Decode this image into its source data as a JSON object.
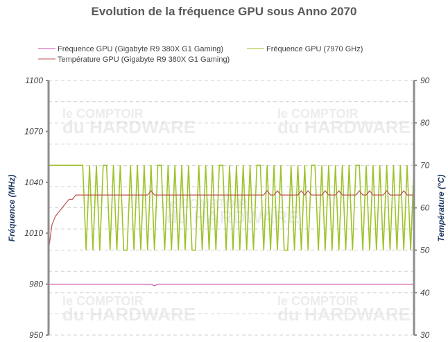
{
  "watermark": {
    "line1": "le COMPTOIR",
    "line2": "du HARDWARE"
  },
  "chart_data": {
    "type": "line",
    "title": "Evolution de la fréquence GPU sous Anno 2070",
    "ylabel": "Fréquence (MHz)",
    "y2label": "Température (°C)",
    "ylim": [
      950,
      1100
    ],
    "yticks": [
      950,
      980,
      1010,
      1040,
      1070,
      1100
    ],
    "y2lim": [
      30,
      90
    ],
    "y2ticks": [
      30,
      40,
      50,
      60,
      70,
      80,
      90
    ],
    "grid": true,
    "legend": "top",
    "series": [
      {
        "name": "Fréquence GPU (Gigabyte R9 380X G1 Gaming)",
        "axis": "left",
        "color": "#cc4fa6",
        "values": [
          980,
          980,
          980,
          980,
          980,
          980,
          980,
          980,
          980,
          980,
          980,
          980,
          980,
          980,
          980,
          980,
          980,
          980,
          980,
          980,
          980,
          980,
          980,
          980,
          980,
          980,
          980,
          980,
          980,
          980,
          980,
          979,
          980,
          980,
          980,
          980,
          980,
          980,
          980,
          980,
          980,
          980,
          980,
          980,
          980,
          980,
          980,
          980,
          980,
          980,
          980,
          980,
          980,
          980,
          980,
          980,
          980,
          980,
          980,
          980,
          980,
          980,
          980,
          980,
          980,
          980,
          980,
          980,
          980,
          980,
          980,
          980,
          980,
          980,
          980,
          980,
          980,
          980,
          980,
          980,
          980,
          980,
          980,
          980,
          980,
          980,
          980,
          980,
          980,
          980,
          980,
          980,
          980,
          980,
          980,
          980,
          980,
          980,
          980,
          980,
          980,
          980,
          980,
          980,
          980,
          980,
          980,
          980
        ]
      },
      {
        "name": "Fréquence GPU (7970 GHz)",
        "axis": "left",
        "color": "#9dc32b",
        "values": [
          1050,
          1050,
          1050,
          1050,
          1050,
          1050,
          1050,
          1050,
          1050,
          1050,
          1050,
          1000,
          1050,
          1000,
          1050,
          1000,
          1050,
          1050,
          1000,
          1050,
          1000,
          1050,
          1000,
          1000,
          1050,
          1000,
          1050,
          1000,
          1050,
          1000,
          1050,
          1000,
          1050,
          1050,
          1000,
          1050,
          1000,
          1050,
          1000,
          1050,
          1000,
          1050,
          1000,
          1000,
          1050,
          1000,
          1050,
          1000,
          1050,
          1000,
          1050,
          1050,
          1000,
          1050,
          1000,
          1050,
          1000,
          1050,
          1000,
          1050,
          1000,
          1050,
          1050,
          1000,
          1050,
          1000,
          1050,
          1000,
          1050,
          1000,
          1000,
          1050,
          1000,
          1050,
          1000,
          1050,
          1000,
          1050,
          1050,
          1000,
          1050,
          1000,
          1050,
          1000,
          1050,
          1000,
          1050,
          1000,
          1050,
          1000,
          1050,
          1050,
          1000,
          1050,
          1000,
          1050,
          1000,
          1050,
          1000,
          1050,
          1000,
          1050,
          1000,
          1050,
          1000,
          1050,
          1000,
          1050
        ]
      },
      {
        "name": "Température GPU  (Gigabyte R9 380X G1 Gaming)",
        "axis": "right",
        "color": "#c0504d",
        "values": [
          50,
          56,
          58,
          59,
          60,
          61,
          62,
          62,
          63,
          63,
          63,
          63,
          63,
          63,
          63,
          63,
          63,
          63,
          63,
          63,
          63,
          63,
          63,
          63,
          63,
          63,
          63,
          63,
          63,
          63,
          64,
          63,
          63,
          63,
          63,
          63,
          63,
          63,
          63,
          63,
          63,
          63,
          63,
          63,
          63,
          63,
          63,
          63,
          63,
          63,
          63,
          63,
          63,
          63,
          63,
          63,
          63,
          63,
          63,
          63,
          63,
          63,
          63,
          63,
          64,
          63,
          63,
          64,
          63,
          63,
          63,
          63,
          63,
          63,
          64,
          63,
          64,
          63,
          63,
          63,
          63,
          64,
          63,
          63,
          63,
          64,
          63,
          63,
          63,
          63,
          63,
          64,
          63,
          63,
          64,
          63,
          63,
          63,
          63,
          64,
          63,
          63,
          63,
          63,
          64,
          63,
          63,
          63
        ]
      }
    ]
  }
}
